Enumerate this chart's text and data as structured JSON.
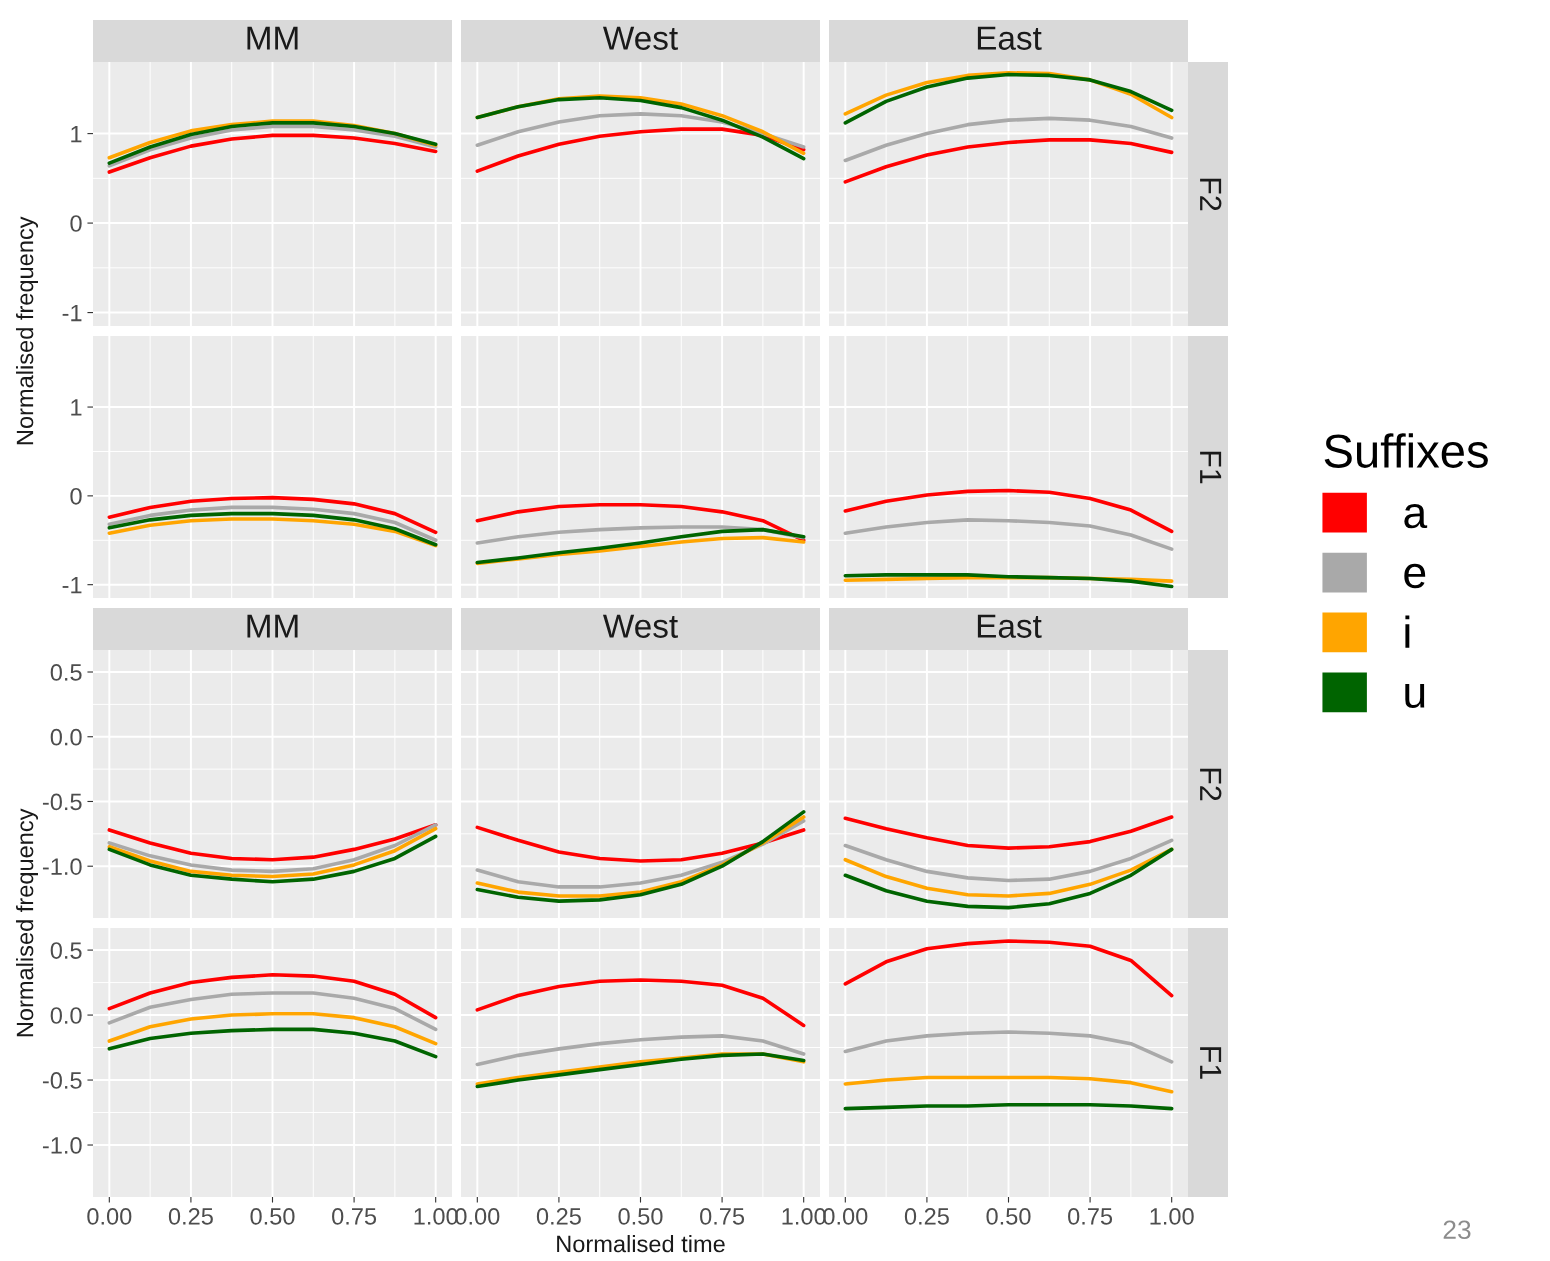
{
  "chart_data": [
    {
      "type": "line",
      "title": "MM",
      "ylabel": "Normalised frequency",
      "legend": "right",
      "legend_title": "Suffixes",
      "grid": true,
      "tick_labels": "y",
      "x": [
        0,
        0.125,
        0.25,
        0.375,
        0.5,
        0.625,
        0.75,
        0.875,
        1
      ],
      "xlim": [
        -0.05,
        1.05
      ],
      "ylim": [
        -1.15,
        1.8
      ],
      "xticks": [
        {
          "value": 0,
          "label": null
        },
        {
          "value": 0.25,
          "label": null
        },
        {
          "value": 0.5,
          "label": null
        },
        {
          "value": 0.75,
          "label": null
        },
        {
          "value": 1,
          "label": null
        }
      ],
      "yticks": [
        -1,
        0,
        1
      ],
      "series": [
        {
          "name": "a",
          "color": "#ff0000",
          "values": [
            0.57,
            0.73,
            0.86,
            0.94,
            0.98,
            0.98,
            0.95,
            0.89,
            0.8
          ]
        },
        {
          "name": "e",
          "color": "#a9a9a9",
          "values": [
            0.64,
            0.82,
            0.95,
            1.04,
            1.08,
            1.08,
            1.04,
            0.97,
            0.85
          ]
        },
        {
          "name": "i",
          "color": "#ffa500",
          "values": [
            0.73,
            0.9,
            1.03,
            1.1,
            1.14,
            1.14,
            1.09,
            1.0,
            0.87
          ]
        },
        {
          "name": "u",
          "color": "#006400",
          "values": [
            0.67,
            0.85,
            0.99,
            1.08,
            1.12,
            1.12,
            1.08,
            1.0,
            0.88
          ]
        }
      ]
    },
    {
      "type": "line",
      "title": "West",
      "grid": true,
      "tick_labels": false,
      "x": [
        0,
        0.125,
        0.25,
        0.375,
        0.5,
        0.625,
        0.75,
        0.875,
        1
      ],
      "xlim": [
        -0.05,
        1.05
      ],
      "ylim": [
        -1.15,
        1.8
      ],
      "xticks": [
        {
          "value": 0,
          "label": null
        },
        {
          "value": 0.25,
          "label": null
        },
        {
          "value": 0.5,
          "label": null
        },
        {
          "value": 0.75,
          "label": null
        },
        {
          "value": 1,
          "label": null
        }
      ],
      "yticks": [
        {
          "value": -1,
          "label": null
        },
        {
          "value": 0,
          "label": null
        },
        {
          "value": 1,
          "label": null
        }
      ],
      "series": [
        {
          "color": "#ff0000",
          "values": [
            0.58,
            0.75,
            0.88,
            0.97,
            1.02,
            1.05,
            1.05,
            0.98,
            0.82
          ]
        },
        {
          "color": "#a9a9a9",
          "values": [
            0.87,
            1.02,
            1.13,
            1.2,
            1.22,
            1.2,
            1.13,
            1.0,
            0.85
          ]
        },
        {
          "color": "#ffa500",
          "values": [
            1.18,
            1.3,
            1.39,
            1.42,
            1.4,
            1.33,
            1.2,
            1.02,
            0.78
          ]
        },
        {
          "color": "#006400",
          "values": [
            1.18,
            1.3,
            1.38,
            1.4,
            1.37,
            1.29,
            1.15,
            0.96,
            0.72
          ]
        }
      ]
    },
    {
      "type": "line",
      "title": "East",
      "y2label": "F2",
      "grid": true,
      "tick_labels": false,
      "x": [
        0,
        0.125,
        0.25,
        0.375,
        0.5,
        0.625,
        0.75,
        0.875,
        1
      ],
      "xlim": [
        -0.05,
        1.05
      ],
      "ylim": [
        -1.15,
        1.8
      ],
      "xticks": [
        {
          "value": 0,
          "label": null
        },
        {
          "value": 0.25,
          "label": null
        },
        {
          "value": 0.5,
          "label": null
        },
        {
          "value": 0.75,
          "label": null
        },
        {
          "value": 1,
          "label": null
        }
      ],
      "yticks": [
        {
          "value": -1,
          "label": null
        },
        {
          "value": 0,
          "label": null
        },
        {
          "value": 1,
          "label": null
        }
      ],
      "series": [
        {
          "color": "#ff0000",
          "values": [
            0.46,
            0.63,
            0.76,
            0.85,
            0.9,
            0.93,
            0.93,
            0.89,
            0.79
          ]
        },
        {
          "color": "#a9a9a9",
          "values": [
            0.7,
            0.87,
            1.0,
            1.1,
            1.15,
            1.17,
            1.15,
            1.08,
            0.95
          ]
        },
        {
          "color": "#ffa500",
          "values": [
            1.22,
            1.43,
            1.57,
            1.65,
            1.68,
            1.67,
            1.6,
            1.44,
            1.18
          ]
        },
        {
          "color": "#006400",
          "values": [
            1.12,
            1.36,
            1.52,
            1.62,
            1.66,
            1.65,
            1.6,
            1.47,
            1.26
          ]
        }
      ]
    },
    {
      "type": "line",
      "grid": true,
      "tick_labels": "y",
      "x": [
        0,
        0.125,
        0.25,
        0.375,
        0.5,
        0.625,
        0.75,
        0.875,
        1
      ],
      "xlim": [
        -0.05,
        1.05
      ],
      "ylim": [
        -1.15,
        1.8
      ],
      "xticks": [
        {
          "value": 0,
          "label": null
        },
        {
          "value": 0.25,
          "label": null
        },
        {
          "value": 0.5,
          "label": null
        },
        {
          "value": 0.75,
          "label": null
        },
        {
          "value": 1,
          "label": null
        }
      ],
      "yticks": [
        -1,
        0,
        1
      ],
      "series": [
        {
          "color": "#ff0000",
          "values": [
            -0.24,
            -0.13,
            -0.06,
            -0.03,
            -0.02,
            -0.04,
            -0.09,
            -0.2,
            -0.41
          ]
        },
        {
          "color": "#a9a9a9",
          "values": [
            -0.32,
            -0.22,
            -0.16,
            -0.13,
            -0.13,
            -0.15,
            -0.2,
            -0.3,
            -0.5
          ]
        },
        {
          "color": "#ffa500",
          "values": [
            -0.42,
            -0.33,
            -0.28,
            -0.26,
            -0.26,
            -0.28,
            -0.32,
            -0.4,
            -0.56
          ]
        },
        {
          "color": "#006400",
          "values": [
            -0.36,
            -0.27,
            -0.22,
            -0.2,
            -0.2,
            -0.22,
            -0.27,
            -0.37,
            -0.55
          ]
        }
      ]
    },
    {
      "type": "line",
      "grid": true,
      "tick_labels": false,
      "x": [
        0,
        0.125,
        0.25,
        0.375,
        0.5,
        0.625,
        0.75,
        0.875,
        1
      ],
      "xlim": [
        -0.05,
        1.05
      ],
      "ylim": [
        -1.15,
        1.8
      ],
      "xticks": [
        {
          "value": 0,
          "label": null
        },
        {
          "value": 0.25,
          "label": null
        },
        {
          "value": 0.5,
          "label": null
        },
        {
          "value": 0.75,
          "label": null
        },
        {
          "value": 1,
          "label": null
        }
      ],
      "yticks": [
        {
          "value": -1,
          "label": null
        },
        {
          "value": 0,
          "label": null
        },
        {
          "value": 1,
          "label": null
        }
      ],
      "series": [
        {
          "color": "#ff0000",
          "values": [
            -0.28,
            -0.18,
            -0.12,
            -0.1,
            -0.1,
            -0.12,
            -0.18,
            -0.28,
            -0.5
          ]
        },
        {
          "color": "#a9a9a9",
          "values": [
            -0.53,
            -0.46,
            -0.41,
            -0.38,
            -0.36,
            -0.35,
            -0.35,
            -0.38,
            -0.47
          ]
        },
        {
          "color": "#ffa500",
          "values": [
            -0.76,
            -0.71,
            -0.66,
            -0.62,
            -0.57,
            -0.52,
            -0.48,
            -0.47,
            -0.52
          ]
        },
        {
          "color": "#006400",
          "values": [
            -0.75,
            -0.7,
            -0.64,
            -0.59,
            -0.53,
            -0.46,
            -0.4,
            -0.38,
            -0.46
          ]
        }
      ]
    },
    {
      "type": "line",
      "y2label": "F1",
      "grid": true,
      "tick_labels": false,
      "x": [
        0,
        0.125,
        0.25,
        0.375,
        0.5,
        0.625,
        0.75,
        0.875,
        1
      ],
      "xlim": [
        -0.05,
        1.05
      ],
      "ylim": [
        -1.15,
        1.8
      ],
      "xticks": [
        {
          "value": 0,
          "label": null
        },
        {
          "value": 0.25,
          "label": null
        },
        {
          "value": 0.5,
          "label": null
        },
        {
          "value": 0.75,
          "label": null
        },
        {
          "value": 1,
          "label": null
        }
      ],
      "yticks": [
        {
          "value": -1,
          "label": null
        },
        {
          "value": 0,
          "label": null
        },
        {
          "value": 1,
          "label": null
        }
      ],
      "series": [
        {
          "color": "#ff0000",
          "values": [
            -0.17,
            -0.06,
            0.01,
            0.05,
            0.06,
            0.04,
            -0.03,
            -0.16,
            -0.4
          ]
        },
        {
          "color": "#a9a9a9",
          "values": [
            -0.42,
            -0.35,
            -0.3,
            -0.27,
            -0.28,
            -0.3,
            -0.34,
            -0.44,
            -0.6
          ]
        },
        {
          "color": "#ffa500",
          "values": [
            -0.95,
            -0.94,
            -0.93,
            -0.92,
            -0.92,
            -0.92,
            -0.93,
            -0.94,
            -0.96
          ]
        },
        {
          "color": "#006400",
          "values": [
            -0.9,
            -0.89,
            -0.89,
            -0.89,
            -0.91,
            -0.92,
            -0.93,
            -0.96,
            -1.02
          ]
        }
      ]
    },
    {
      "type": "line",
      "title": "MM",
      "ylabel": "Normalised frequency",
      "grid": true,
      "tick_labels": "y",
      "x": [
        0,
        0.125,
        0.25,
        0.375,
        0.5,
        0.625,
        0.75,
        0.875,
        1
      ],
      "xlim": [
        -0.05,
        1.05
      ],
      "ylim": [
        -1.4,
        0.67
      ],
      "xticks": [
        {
          "value": 0,
          "label": null
        },
        {
          "value": 0.25,
          "label": null
        },
        {
          "value": 0.5,
          "label": null
        },
        {
          "value": 0.75,
          "label": null
        },
        {
          "value": 1,
          "label": null
        }
      ],
      "yticks": [
        {
          "value": -1,
          "label": "-1.0"
        },
        {
          "value": -0.5,
          "label": "-0.5"
        },
        {
          "value": 0,
          "label": "0.0"
        },
        {
          "value": 0.5,
          "label": "0.5"
        }
      ],
      "series": [
        {
          "color": "#ff0000",
          "values": [
            -0.72,
            -0.82,
            -0.9,
            -0.94,
            -0.95,
            -0.93,
            -0.87,
            -0.79,
            -0.68
          ]
        },
        {
          "color": "#a9a9a9",
          "values": [
            -0.82,
            -0.92,
            -0.99,
            -1.03,
            -1.04,
            -1.02,
            -0.95,
            -0.84,
            -0.68
          ]
        },
        {
          "color": "#ffa500",
          "values": [
            -0.85,
            -0.96,
            -1.04,
            -1.07,
            -1.08,
            -1.06,
            -0.99,
            -0.88,
            -0.71
          ]
        },
        {
          "color": "#006400",
          "values": [
            -0.87,
            -0.99,
            -1.07,
            -1.1,
            -1.12,
            -1.1,
            -1.04,
            -0.94,
            -0.77
          ]
        }
      ]
    },
    {
      "type": "line",
      "title": "West",
      "grid": true,
      "tick_labels": false,
      "x": [
        0,
        0.125,
        0.25,
        0.375,
        0.5,
        0.625,
        0.75,
        0.875,
        1
      ],
      "xlim": [
        -0.05,
        1.05
      ],
      "ylim": [
        -1.4,
        0.67
      ],
      "xticks": [
        {
          "value": 0,
          "label": null
        },
        {
          "value": 0.25,
          "label": null
        },
        {
          "value": 0.5,
          "label": null
        },
        {
          "value": 0.75,
          "label": null
        },
        {
          "value": 1,
          "label": null
        }
      ],
      "yticks": [
        {
          "value": -1,
          "label": null
        },
        {
          "value": -0.5,
          "label": null
        },
        {
          "value": 0,
          "label": null
        },
        {
          "value": 0.5,
          "label": null
        }
      ],
      "series": [
        {
          "color": "#ff0000",
          "values": [
            -0.7,
            -0.8,
            -0.89,
            -0.94,
            -0.96,
            -0.95,
            -0.9,
            -0.82,
            -0.72
          ]
        },
        {
          "color": "#a9a9a9",
          "values": [
            -1.03,
            -1.12,
            -1.16,
            -1.16,
            -1.13,
            -1.07,
            -0.97,
            -0.83,
            -0.65
          ]
        },
        {
          "color": "#ffa500",
          "values": [
            -1.13,
            -1.2,
            -1.23,
            -1.23,
            -1.2,
            -1.12,
            -0.99,
            -0.82,
            -0.62
          ]
        },
        {
          "color": "#006400",
          "values": [
            -1.18,
            -1.24,
            -1.27,
            -1.26,
            -1.22,
            -1.14,
            -1.0,
            -0.81,
            -0.58
          ]
        }
      ]
    },
    {
      "type": "line",
      "title": "East",
      "y2label": "F2",
      "grid": true,
      "tick_labels": false,
      "x": [
        0,
        0.125,
        0.25,
        0.375,
        0.5,
        0.625,
        0.75,
        0.875,
        1
      ],
      "xlim": [
        -0.05,
        1.05
      ],
      "ylim": [
        -1.4,
        0.67
      ],
      "xticks": [
        {
          "value": 0,
          "label": null
        },
        {
          "value": 0.25,
          "label": null
        },
        {
          "value": 0.5,
          "label": null
        },
        {
          "value": 0.75,
          "label": null
        },
        {
          "value": 1,
          "label": null
        }
      ],
      "yticks": [
        {
          "value": -1,
          "label": null
        },
        {
          "value": -0.5,
          "label": null
        },
        {
          "value": 0,
          "label": null
        },
        {
          "value": 0.5,
          "label": null
        }
      ],
      "series": [
        {
          "color": "#ff0000",
          "values": [
            -0.63,
            -0.71,
            -0.78,
            -0.84,
            -0.86,
            -0.85,
            -0.81,
            -0.73,
            -0.62
          ]
        },
        {
          "color": "#a9a9a9",
          "values": [
            -0.84,
            -0.95,
            -1.04,
            -1.09,
            -1.11,
            -1.1,
            -1.04,
            -0.94,
            -0.8
          ]
        },
        {
          "color": "#ffa500",
          "values": [
            -0.95,
            -1.08,
            -1.17,
            -1.22,
            -1.23,
            -1.21,
            -1.14,
            -1.03,
            -0.87
          ]
        },
        {
          "color": "#006400",
          "values": [
            -1.07,
            -1.19,
            -1.27,
            -1.31,
            -1.32,
            -1.29,
            -1.21,
            -1.07,
            -0.87
          ]
        }
      ]
    },
    {
      "type": "line",
      "grid": true,
      "x": [
        0,
        0.125,
        0.25,
        0.375,
        0.5,
        0.625,
        0.75,
        0.875,
        1
      ],
      "xlim": [
        -0.05,
        1.05
      ],
      "ylim": [
        -1.4,
        0.67
      ],
      "xticks": [
        {
          "value": 0,
          "label": "0.00"
        },
        {
          "value": 0.25,
          "label": "0.25"
        },
        {
          "value": 0.5,
          "label": "0.50"
        },
        {
          "value": 0.75,
          "label": "0.75"
        },
        {
          "value": 1,
          "label": "1.00"
        }
      ],
      "yticks": [
        {
          "value": -1,
          "label": "-1.0"
        },
        {
          "value": -0.5,
          "label": "-0.5"
        },
        {
          "value": 0,
          "label": "0.0"
        },
        {
          "value": 0.5,
          "label": "0.5"
        }
      ],
      "series": [
        {
          "color": "#ff0000",
          "values": [
            0.05,
            0.17,
            0.25,
            0.29,
            0.31,
            0.3,
            0.26,
            0.16,
            -0.02
          ]
        },
        {
          "color": "#a9a9a9",
          "values": [
            -0.06,
            0.06,
            0.12,
            0.16,
            0.17,
            0.17,
            0.13,
            0.05,
            -0.11
          ]
        },
        {
          "color": "#ffa500",
          "values": [
            -0.2,
            -0.09,
            -0.03,
            0.0,
            0.01,
            0.01,
            -0.02,
            -0.09,
            -0.22
          ]
        },
        {
          "color": "#006400",
          "values": [
            -0.26,
            -0.18,
            -0.14,
            -0.12,
            -0.11,
            -0.11,
            -0.14,
            -0.2,
            -0.32
          ]
        }
      ]
    },
    {
      "type": "line",
      "xlabel": "Normalised time",
      "grid": true,
      "tick_labels": "x",
      "x": [
        0,
        0.125,
        0.25,
        0.375,
        0.5,
        0.625,
        0.75,
        0.875,
        1
      ],
      "xlim": [
        -0.05,
        1.05
      ],
      "ylim": [
        -1.4,
        0.67
      ],
      "xticks": [
        {
          "value": 0,
          "label": "0.00"
        },
        {
          "value": 0.25,
          "label": "0.25"
        },
        {
          "value": 0.5,
          "label": "0.50"
        },
        {
          "value": 0.75,
          "label": "0.75"
        },
        {
          "value": 1,
          "label": "1.00"
        }
      ],
      "yticks": [
        {
          "value": -1,
          "label": null
        },
        {
          "value": -0.5,
          "label": null
        },
        {
          "value": 0,
          "label": null
        },
        {
          "value": 0.5,
          "label": null
        }
      ],
      "series": [
        {
          "color": "#ff0000",
          "values": [
            0.04,
            0.15,
            0.22,
            0.26,
            0.27,
            0.26,
            0.23,
            0.13,
            -0.08
          ]
        },
        {
          "color": "#a9a9a9",
          "values": [
            -0.38,
            -0.31,
            -0.26,
            -0.22,
            -0.19,
            -0.17,
            -0.16,
            -0.2,
            -0.3
          ]
        },
        {
          "color": "#ffa500",
          "values": [
            -0.53,
            -0.48,
            -0.44,
            -0.4,
            -0.36,
            -0.33,
            -0.3,
            -0.3,
            -0.36
          ]
        },
        {
          "color": "#006400",
          "values": [
            -0.55,
            -0.5,
            -0.46,
            -0.42,
            -0.38,
            -0.34,
            -0.31,
            -0.3,
            -0.35
          ]
        }
      ]
    },
    {
      "type": "line",
      "y2label": "F1",
      "annotations": [
        "23"
      ],
      "grid": true,
      "tick_labels": "x",
      "x": [
        0,
        0.125,
        0.25,
        0.375,
        0.5,
        0.625,
        0.75,
        0.875,
        1
      ],
      "xlim": [
        -0.05,
        1.05
      ],
      "ylim": [
        -1.4,
        0.67
      ],
      "xticks": [
        {
          "value": 0,
          "label": "0.00"
        },
        {
          "value": 0.25,
          "label": "0.25"
        },
        {
          "value": 0.5,
          "label": "0.50"
        },
        {
          "value": 0.75,
          "label": "0.75"
        },
        {
          "value": 1,
          "label": "1.00"
        }
      ],
      "yticks": [
        {
          "value": -1,
          "label": null
        },
        {
          "value": -0.5,
          "label": null
        },
        {
          "value": 0,
          "label": null
        },
        {
          "value": 0.5,
          "label": null
        }
      ],
      "series": [
        {
          "color": "#ff0000",
          "values": [
            0.24,
            0.41,
            0.51,
            0.55,
            0.57,
            0.56,
            0.53,
            0.42,
            0.15
          ]
        },
        {
          "color": "#a9a9a9",
          "values": [
            -0.28,
            -0.2,
            -0.16,
            -0.14,
            -0.13,
            -0.14,
            -0.16,
            -0.22,
            -0.36
          ]
        },
        {
          "color": "#ffa500",
          "values": [
            -0.53,
            -0.5,
            -0.48,
            -0.48,
            -0.48,
            -0.48,
            -0.49,
            -0.52,
            -0.59
          ]
        },
        {
          "color": "#006400",
          "values": [
            -0.72,
            -0.71,
            -0.7,
            -0.7,
            -0.69,
            -0.69,
            -0.69,
            -0.7,
            -0.72
          ]
        }
      ]
    }
  ]
}
